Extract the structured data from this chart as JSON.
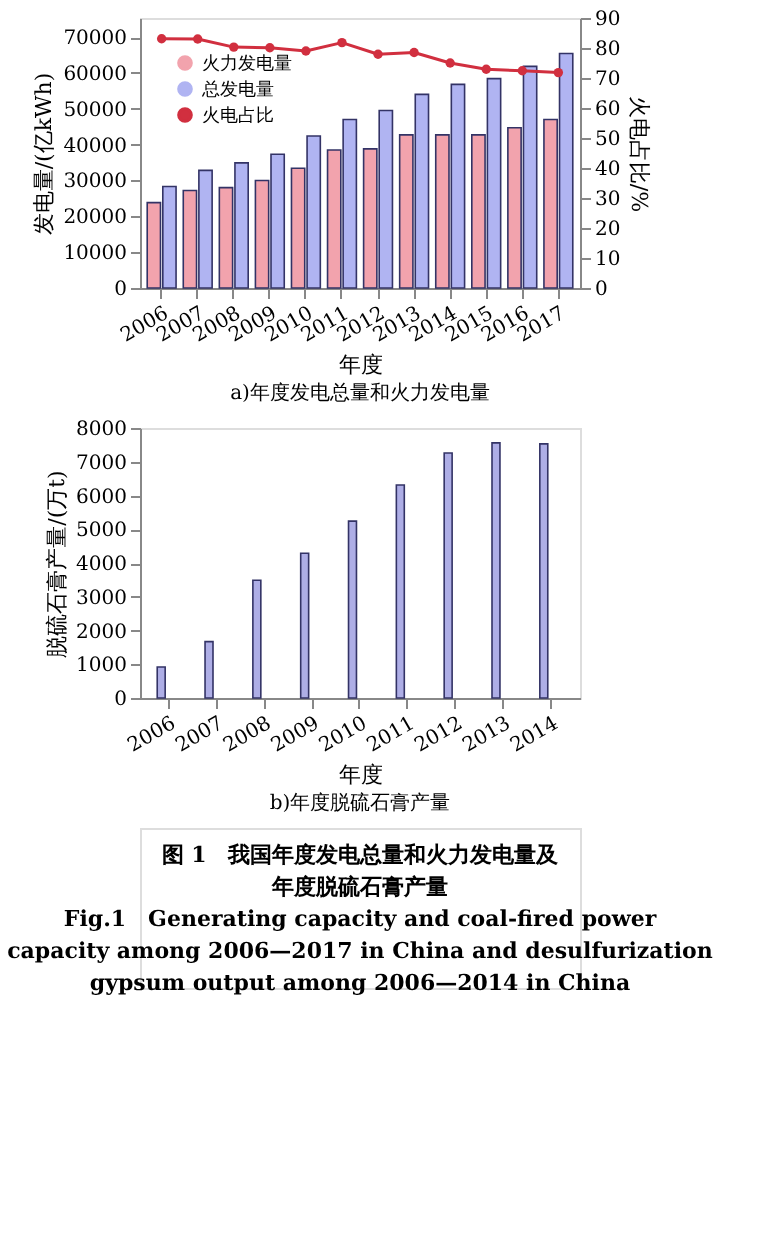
{
  "chart_data": [
    {
      "type": "bar",
      "title": "a)年度发电总量和火力发电量",
      "xlabel": "年度",
      "ylabel": "发电量/(亿kWh)",
      "y2label": "火电占比/%",
      "categories": [
        "2006",
        "2007",
        "2008",
        "2009",
        "2010",
        "2011",
        "2012",
        "2013",
        "2014",
        "2015",
        "2016",
        "2017"
      ],
      "series": [
        {
          "name": "火力发电量",
          "color": "#f2a3ad",
          "values": [
            23800,
            27200,
            28000,
            30000,
            33400,
            38500,
            38800,
            42700,
            42700,
            42700,
            44700,
            47000
          ]
        },
        {
          "name": "总发电量",
          "color": "#b0b4f2",
          "values": [
            28300,
            32800,
            34900,
            37300,
            42400,
            47000,
            49500,
            54000,
            56800,
            58400,
            61800,
            65400
          ]
        },
        {
          "name": "火电占比",
          "type": "line",
          "axis": "y2",
          "color": "#d12f3f",
          "marker": "circle",
          "values": [
            83.1,
            83.0,
            80.3,
            80.1,
            79.0,
            81.8,
            77.9,
            78.5,
            75.0,
            72.9,
            72.4,
            71.8
          ]
        }
      ],
      "ylim": [
        0,
        75300
      ],
      "yticks": [
        0,
        10000,
        20000,
        30000,
        40000,
        50000,
        60000,
        70000
      ],
      "y2lim": [
        0,
        90
      ],
      "y2ticks": [
        0,
        10,
        20,
        30,
        40,
        50,
        60,
        70,
        80,
        90
      ],
      "legend": "top left",
      "grid": false
    },
    {
      "type": "bar",
      "title": "b)年度脱硫石膏产量",
      "xlabel": "年度",
      "ylabel": "脱硫石膏产量/(万t)",
      "categories": [
        "2006",
        "2007",
        "2008",
        "2009",
        "2010",
        "2011",
        "2012",
        "2013",
        "2014"
      ],
      "series": [
        {
          "color": "#aeaee6",
          "values": [
            920,
            1670,
            3490,
            4290,
            5240,
            6310,
            7260,
            7560,
            7530
          ]
        }
      ],
      "ylim": [
        0,
        8000
      ],
      "yticks": [
        0,
        1000,
        2000,
        3000,
        4000,
        5000,
        6000,
        7000,
        8000
      ],
      "grid": false,
      "annotations": [
        "图 1　我国年度发电总量和火力发电量及",
        "年度脱硫石膏产量",
        "Fig.1　Generating capacity and coal-fired power",
        "capacity among 2006—2017 in China and desulfurization",
        "gypsum output among 2006—2014 in China"
      ]
    }
  ]
}
